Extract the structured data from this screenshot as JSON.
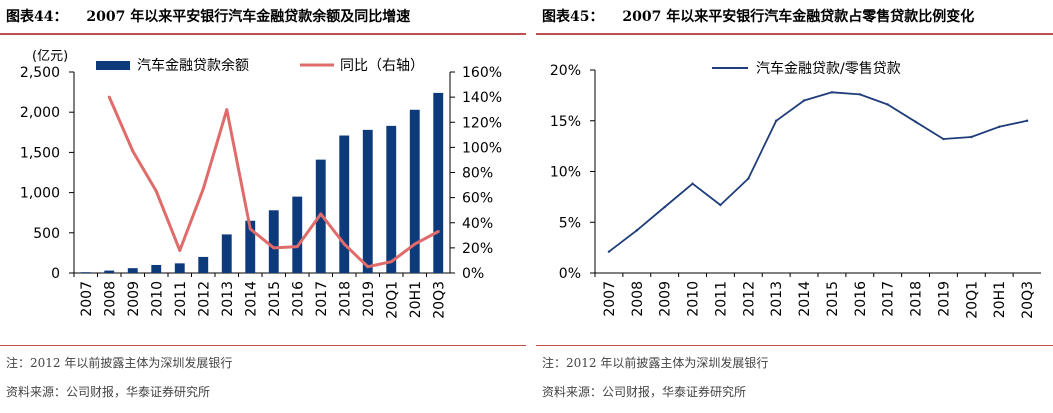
{
  "left": {
    "figure_label": "图表44：",
    "figure_title": "2007 年以来平安银行汽车金融贷款余额及同比增速",
    "note": "注：2012 年以前披露主体为深圳发展银行",
    "source": "资料来源：公司财报，华泰证券研究所"
  },
  "right": {
    "figure_label": "图表45：",
    "figure_title": "2007 年以来平安银行汽车金融贷款占零售贷款比例变化",
    "note": "注：2012 年以前披露主体为深圳发展银行",
    "source": "资料来源：公司财报，华泰证券研究所"
  },
  "chart_data": [
    {
      "type": "bar",
      "unit_label": "(亿元)",
      "categories": [
        "2007",
        "2008",
        "2009",
        "2010",
        "2011",
        "2012",
        "2013",
        "2014",
        "2015",
        "2016",
        "2017",
        "2018",
        "2019",
        "20Q1",
        "20H1",
        "20Q3"
      ],
      "series": [
        {
          "name": "汽车金融贷款余额",
          "type": "bar",
          "axis": "left",
          "color": "#0c3a7a",
          "values": [
            10,
            30,
            60,
            100,
            120,
            200,
            480,
            650,
            780,
            950,
            1410,
            1710,
            1780,
            1830,
            2030,
            2240
          ]
        },
        {
          "name": "同比（右轴）",
          "type": "line",
          "axis": "right",
          "color": "#e06b6b",
          "values": [
            null,
            140,
            97,
            65,
            18,
            67,
            130,
            35,
            20,
            21,
            47,
            23,
            5,
            9,
            23,
            33
          ]
        }
      ],
      "left_axis": {
        "ylim": [
          0,
          2500
        ],
        "ticks": [
          0,
          500,
          1000,
          1500,
          2000,
          2500
        ],
        "tick_labels": [
          "0",
          "500",
          "1,000",
          "1,500",
          "2,000",
          "2,500"
        ]
      },
      "right_axis": {
        "ylim": [
          0,
          160
        ],
        "ticks": [
          0,
          20,
          40,
          60,
          80,
          100,
          120,
          140,
          160
        ],
        "tick_labels": [
          "0%",
          "20%",
          "40%",
          "60%",
          "80%",
          "100%",
          "120%",
          "140%",
          "160%"
        ]
      },
      "legend_position": "top"
    },
    {
      "type": "line",
      "categories": [
        "2007",
        "2008",
        "2009",
        "2010",
        "2011",
        "2012",
        "2013",
        "2014",
        "2015",
        "2016",
        "2017",
        "2018",
        "2019",
        "20Q1",
        "20H1",
        "20Q3"
      ],
      "series": [
        {
          "name": "汽车金融贷款/零售贷款",
          "color": "#1f3d7a",
          "values": [
            2.1,
            4.2,
            6.5,
            8.8,
            6.7,
            9.3,
            15.0,
            17.0,
            17.8,
            17.6,
            16.6,
            14.9,
            13.2,
            13.4,
            14.4,
            15.0
          ]
        }
      ],
      "ylim": [
        0,
        20
      ],
      "ticks": [
        0,
        5,
        10,
        15,
        20
      ],
      "tick_labels": [
        "0%",
        "5%",
        "10%",
        "15%",
        "20%"
      ],
      "legend_position": "top"
    }
  ]
}
